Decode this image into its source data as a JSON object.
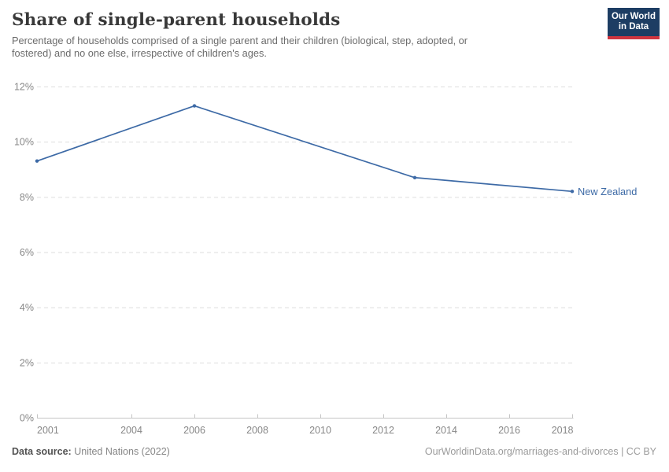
{
  "header": {
    "title": "Share of single-parent households",
    "subtitle_lines": [
      "Percentage of households comprised of a single parent and their children (biological, step, adopted, or",
      "fostered) and no one else, irrespective of children's ages."
    ]
  },
  "logo": {
    "line1": "Our World",
    "line2": "in Data",
    "bg_color": "#1d3d63",
    "accent_color": "#d0353f"
  },
  "chart_data": {
    "type": "line",
    "title": "Share of single-parent households",
    "xlabel": "",
    "ylabel": "",
    "xlim": [
      2001,
      2018
    ],
    "ylim": [
      0,
      12
    ],
    "x_ticks": [
      2001,
      2004,
      2006,
      2008,
      2010,
      2012,
      2014,
      2016,
      2018
    ],
    "y_ticks": [
      0,
      2,
      4,
      6,
      8,
      10,
      12
    ],
    "y_unit": "%",
    "grid": "horizontal-dashed",
    "legend_position": "end-of-line-label",
    "series": [
      {
        "name": "New Zealand",
        "color": "#3d6aa6",
        "x": [
          2001,
          2006,
          2013,
          2018
        ],
        "values": [
          9.3,
          11.3,
          8.7,
          8.2
        ]
      }
    ]
  },
  "footer": {
    "source_label": "Data source:",
    "source_value": "United Nations (2022)",
    "credit": "OurWorldinData.org/marriages-and-divorces | CC BY"
  }
}
